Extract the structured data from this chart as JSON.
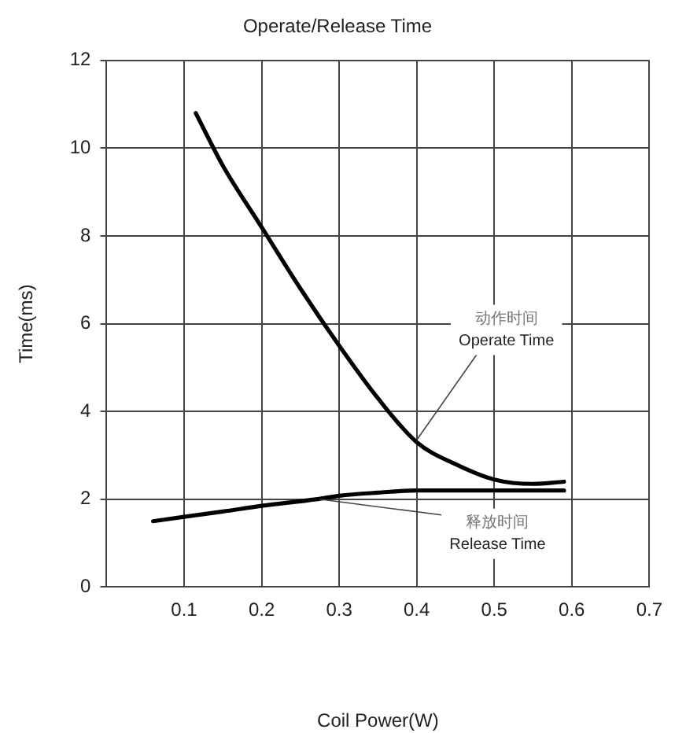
{
  "chart_data": {
    "type": "line",
    "title": "Operate/Release Time",
    "xlabel": "Coil Power(W)",
    "ylabel": "Time(ms)",
    "xlim": [
      0,
      0.7
    ],
    "xticks": [
      0.1,
      0.2,
      0.3,
      0.4,
      0.5,
      0.6,
      0.7
    ],
    "ylim": [
      0,
      12
    ],
    "yticks": [
      0,
      2,
      4,
      6,
      8,
      10,
      12
    ],
    "grid": true,
    "legend": false,
    "marker": "none",
    "line_style": "solid",
    "series": [
      {
        "color": "#000000",
        "x": [
          0.115,
          0.15,
          0.2,
          0.25,
          0.3,
          0.35,
          0.4,
          0.45,
          0.5,
          0.55,
          0.59
        ],
        "values": [
          10.8,
          9.6,
          8.2,
          6.8,
          5.5,
          4.3,
          3.3,
          2.8,
          2.45,
          2.35,
          2.4
        ]
      },
      {
        "color": "#000000",
        "x": [
          0.06,
          0.1,
          0.15,
          0.2,
          0.27,
          0.3,
          0.35,
          0.4,
          0.5,
          0.59
        ],
        "values": [
          1.5,
          1.6,
          1.72,
          1.85,
          2.0,
          2.08,
          2.15,
          2.2,
          2.2,
          2.2
        ]
      }
    ],
    "annotations": [
      {
        "text": "动作时间\nOperate Time",
        "x": 0.4,
        "y": 3.35
      },
      {
        "text": "释放时间\nRelease Time",
        "x": 0.275,
        "y": 2.0
      }
    ]
  }
}
